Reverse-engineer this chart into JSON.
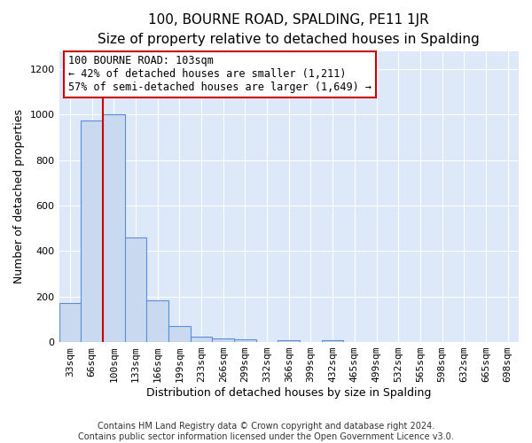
{
  "title": "100, BOURNE ROAD, SPALDING, PE11 1JR",
  "subtitle": "Size of property relative to detached houses in Spalding",
  "xlabel": "Distribution of detached houses by size in Spalding",
  "ylabel": "Number of detached properties",
  "bar_labels": [
    "33sqm",
    "66sqm",
    "100sqm",
    "133sqm",
    "166sqm",
    "199sqm",
    "233sqm",
    "266sqm",
    "299sqm",
    "332sqm",
    "366sqm",
    "399sqm",
    "432sqm",
    "465sqm",
    "499sqm",
    "532sqm",
    "565sqm",
    "598sqm",
    "632sqm",
    "665sqm",
    "698sqm"
  ],
  "bar_values": [
    170,
    975,
    1000,
    460,
    185,
    70,
    25,
    15,
    12,
    0,
    10,
    0,
    10,
    0,
    0,
    0,
    0,
    0,
    0,
    0,
    0
  ],
  "bar_color": "#c9d9f0",
  "bar_edge_color": "#5b8ed6",
  "property_label": "100 BOURNE ROAD: 103sqm",
  "smaller_pct": 42,
  "smaller_count": 1211,
  "larger_pct": 57,
  "larger_count": 1649,
  "ylim": [
    0,
    1280
  ],
  "yticks": [
    0,
    200,
    400,
    600,
    800,
    1000,
    1200
  ],
  "annotation_box_color": "#ffffff",
  "annotation_box_edge": "#cc0000",
  "red_line_color": "#cc0000",
  "footer1": "Contains HM Land Registry data © Crown copyright and database right 2024.",
  "footer2": "Contains public sector information licensed under the Open Government Licence v3.0.",
  "fig_background_color": "#ffffff",
  "plot_background": "#dde8f8",
  "grid_color": "#ffffff",
  "title_fontsize": 11,
  "subtitle_fontsize": 10,
  "axis_label_fontsize": 9,
  "tick_fontsize": 8,
  "footer_fontsize": 7,
  "annotation_fontsize": 8.5
}
